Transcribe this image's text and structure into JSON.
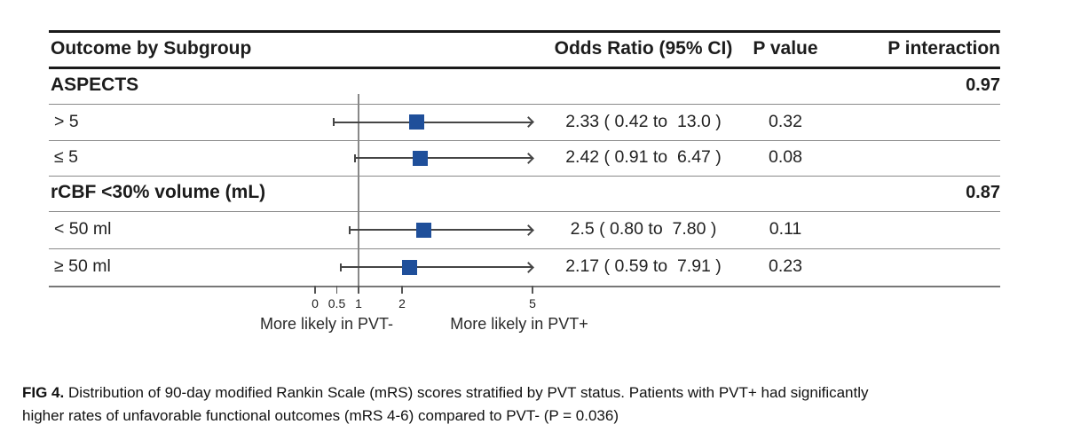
{
  "colors": {
    "marker_blue": "#1f4f9a",
    "whisker_gray": "#454545",
    "reference_line_gray": "#888888",
    "border_black": "#1a1a1a",
    "row_line_gray": "#8a8a8a"
  },
  "header": {
    "outcome": "Outcome by Subgroup",
    "odds_ratio": "Odds Ratio (95% CI)",
    "p_value": "P value",
    "p_interaction": "P interaction"
  },
  "chart_data": {
    "type": "forest",
    "x_axis": {
      "scale": "linear",
      "ticks": [
        0,
        0.5,
        1,
        2,
        5
      ],
      "tick_labels": [
        "0",
        "0.5",
        "1",
        "2",
        "5"
      ],
      "range_min": 0,
      "range_max": 5,
      "reference_value": 1,
      "clip_max": 5,
      "left_direction_label": "More likely in PVT-",
      "right_direction_label": "More likely in PVT+"
    },
    "rows": [
      {
        "type": "group",
        "label": "ASPECTS",
        "p_interaction": "0.97"
      },
      {
        "type": "item",
        "label": "> 5",
        "or": 2.33,
        "ci_low": 0.42,
        "ci_high": 13.0,
        "or_text": "2.33 ( 0.42 to  13.0 )",
        "p_value": "0.32"
      },
      {
        "type": "item",
        "label": "≤ 5",
        "or": 2.42,
        "ci_low": 0.91,
        "ci_high": 6.47,
        "or_text": "2.42 ( 0.91 to  6.47 )",
        "p_value": "0.08"
      },
      {
        "type": "group",
        "label": "rCBF <30% volume (mL)",
        "p_interaction": "0.87"
      },
      {
        "type": "item",
        "label": "< 50 ml",
        "or": 2.5,
        "ci_low": 0.8,
        "ci_high": 7.8,
        "or_text": "2.5 ( 0.80 to  7.80 )",
        "p_value": "0.11"
      },
      {
        "type": "item",
        "label": "≥ 50 ml",
        "or": 2.17,
        "ci_low": 0.59,
        "ci_high": 7.91,
        "or_text": "2.17 ( 0.59 to  7.91 )",
        "p_value": "0.23"
      }
    ]
  },
  "caption": {
    "tag": "FIG 4.",
    "line1": "Distribution of 90-day modified Rankin Scale (mRS) scores stratified by PVT status. Patients with PVT+ had significantly",
    "line2": "higher rates of unfavorable functional outcomes (mRS 4-6) compared to PVT- (P = 0.036)"
  }
}
